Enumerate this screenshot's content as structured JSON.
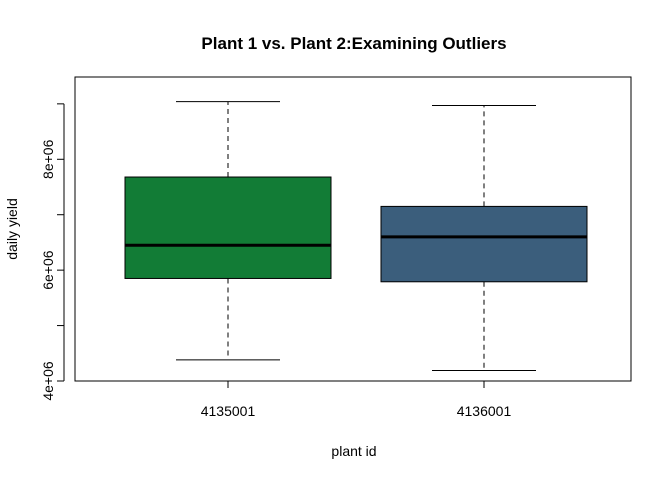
{
  "chart_data": {
    "type": "boxplot",
    "title": "Plant 1 vs. Plant 2:Examining Outliers",
    "xlabel": "plant id",
    "ylabel": "daily yield",
    "categories": [
      "4135001",
      "4136001"
    ],
    "ylim": [
      4000000,
      9250000
    ],
    "yticks": [
      4000000,
      5000000,
      6000000,
      7000000,
      8000000,
      9000000
    ],
    "ytick_labels": [
      "4e+06",
      "",
      "6e+06",
      "",
      "8e+06",
      ""
    ],
    "boxes": [
      {
        "category": "4135001",
        "whisker_low": 4380000,
        "q1": 5850000,
        "median": 6450000,
        "q3": 7680000,
        "whisker_high": 9040000,
        "color": "#127C36"
      },
      {
        "category": "4136001",
        "whisker_low": 4190000,
        "q1": 5790000,
        "median": 6600000,
        "q3": 7150000,
        "whisker_high": 8970000,
        "color": "#3B5E7C"
      }
    ],
    "grid": false,
    "legend": "none"
  }
}
